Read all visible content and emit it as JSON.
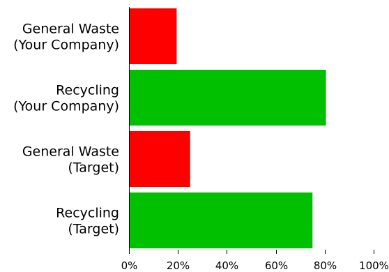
{
  "chart_data": {
    "type": "bar",
    "orientation": "horizontal",
    "title": "",
    "xlabel": "",
    "ylabel": "",
    "categories": [
      [
        "General Waste",
        "(Your Company)"
      ],
      [
        "Recycling",
        "(Your Company)"
      ],
      [
        "General Waste",
        "(Target)"
      ],
      [
        "Recycling",
        "(Target)"
      ]
    ],
    "values": [
      0.195,
      0.805,
      0.25,
      0.75
    ],
    "colors": [
      "#ff0000",
      "#00c000",
      "#ff0000",
      "#00c000"
    ],
    "xlim": [
      0,
      1
    ],
    "xticks": [
      0,
      0.2,
      0.4,
      0.6,
      0.8,
      1.0
    ],
    "xtick_labels": [
      "0%",
      "20%",
      "40%",
      "60%",
      "80%",
      "100%"
    ],
    "grid": false,
    "legend": "none"
  }
}
